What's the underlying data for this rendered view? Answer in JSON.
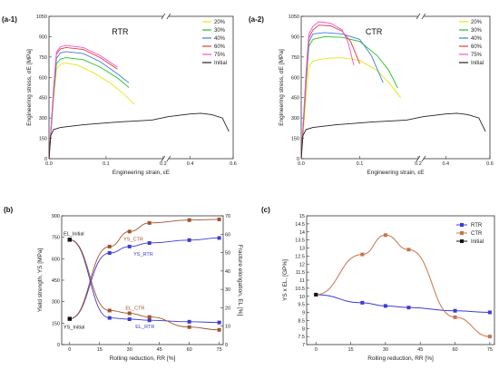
{
  "chart_data": [
    {
      "type": "line",
      "panel_label": "(a-1)",
      "title": "RTR",
      "xlabel": "Engineering strain, εE",
      "ylabel": "Engineering stress, σE [MPa]",
      "xlim": [
        0,
        0.6
      ],
      "ylim": [
        0,
        1050
      ],
      "xticks": [
        "0.0",
        "0.1",
        "0.2",
        "0.4",
        "0.6"
      ],
      "yticks": [
        "0",
        "150",
        "300",
        "450",
        "600",
        "750",
        "900",
        "1050"
      ],
      "legend_position": "top-right",
      "series": [
        {
          "name": "20%",
          "color": "#e6e60f",
          "x": [
            0,
            0.008,
            0.013,
            0.02,
            0.03,
            0.05,
            0.08,
            0.11,
            0.13,
            0.15
          ],
          "y": [
            0,
            440,
            660,
            695,
            705,
            690,
            630,
            550,
            480,
            400
          ]
        },
        {
          "name": "30%",
          "color": "#22c322",
          "x": [
            0,
            0.008,
            0.013,
            0.02,
            0.03,
            0.06,
            0.09,
            0.12,
            0.14
          ],
          "y": [
            0,
            460,
            700,
            735,
            745,
            730,
            675,
            595,
            525
          ]
        },
        {
          "name": "40%",
          "color": "#3f7de0",
          "x": [
            0,
            0.008,
            0.013,
            0.02,
            0.03,
            0.06,
            0.09,
            0.12,
            0.14
          ],
          "y": [
            0,
            480,
            740,
            780,
            790,
            775,
            715,
            625,
            560
          ]
        },
        {
          "name": "60%",
          "color": "#e83a3a",
          "x": [
            0,
            0.008,
            0.013,
            0.02,
            0.03,
            0.06,
            0.09,
            0.12
          ],
          "y": [
            0,
            500,
            770,
            810,
            820,
            805,
            745,
            660
          ]
        },
        {
          "name": "75%",
          "color": "#ef4fd6",
          "x": [
            0,
            0.008,
            0.013,
            0.02,
            0.03,
            0.06,
            0.09,
            0.12
          ],
          "y": [
            0,
            510,
            785,
            825,
            835,
            820,
            760,
            675
          ]
        },
        {
          "name": "Initial",
          "color": "#222222",
          "x": [
            0,
            0.003,
            0.008,
            0.02,
            0.06,
            0.12,
            0.18,
            0.3,
            0.4,
            0.45,
            0.5,
            0.55,
            0.58
          ],
          "y": [
            0,
            170,
            215,
            230,
            250,
            270,
            285,
            310,
            330,
            335,
            325,
            300,
            200
          ]
        }
      ]
    },
    {
      "type": "line",
      "panel_label": "(a-2)",
      "title": "CTR",
      "xlabel": "Engineering strain, εE",
      "ylabel": "Engineering stress, σE [MPa]",
      "xlim": [
        0,
        0.6
      ],
      "ylim": [
        0,
        1050
      ],
      "xticks": [
        "0.0",
        "0.1",
        "0.2",
        "0.4",
        "0.6"
      ],
      "yticks": [
        "0",
        "150",
        "300",
        "450",
        "600",
        "750",
        "900",
        "1050"
      ],
      "legend_position": "top-right",
      "series": [
        {
          "name": "20%",
          "color": "#e6e60f",
          "x": [
            0,
            0.008,
            0.013,
            0.02,
            0.04,
            0.07,
            0.1,
            0.13,
            0.15,
            0.17
          ],
          "y": [
            0,
            450,
            680,
            720,
            740,
            745,
            725,
            650,
            560,
            450
          ]
        },
        {
          "name": "30%",
          "color": "#22c322",
          "x": [
            0,
            0.008,
            0.013,
            0.02,
            0.04,
            0.07,
            0.1,
            0.13,
            0.15,
            0.165
          ],
          "y": [
            0,
            550,
            830,
            880,
            900,
            895,
            865,
            760,
            650,
            520
          ]
        },
        {
          "name": "40%",
          "color": "#3f7de0",
          "x": [
            0,
            0.008,
            0.013,
            0.02,
            0.04,
            0.07,
            0.1,
            0.12,
            0.14
          ],
          "y": [
            0,
            570,
            860,
            920,
            930,
            920,
            880,
            760,
            560
          ]
        },
        {
          "name": "60%",
          "color": "#e83a3a",
          "x": [
            0,
            0.008,
            0.013,
            0.02,
            0.03,
            0.05,
            0.07,
            0.085,
            0.1
          ],
          "y": [
            0,
            600,
            890,
            950,
            985,
            980,
            940,
            860,
            700
          ]
        },
        {
          "name": "75%",
          "color": "#ef4fd6",
          "x": [
            0,
            0.008,
            0.013,
            0.02,
            0.03,
            0.05,
            0.07,
            0.08,
            0.09
          ],
          "y": [
            0,
            620,
            920,
            975,
            1010,
            1000,
            950,
            860,
            690
          ]
        },
        {
          "name": "Initial",
          "color": "#222222",
          "x": [
            0,
            0.003,
            0.008,
            0.02,
            0.06,
            0.12,
            0.18,
            0.3,
            0.4,
            0.45,
            0.5,
            0.55,
            0.58
          ],
          "y": [
            0,
            170,
            215,
            230,
            250,
            270,
            285,
            310,
            330,
            335,
            325,
            300,
            200
          ]
        }
      ]
    },
    {
      "type": "line",
      "panel_label": "(b)",
      "xlabel": "Rolling reduction, RR [%]",
      "ylabel": "Yield strength, YS [MPa]",
      "ylabel_right": "Fracture elongation, EL [%]",
      "xlim": [
        -4,
        77
      ],
      "ylim": [
        0,
        900
      ],
      "ylim_right": [
        0,
        70
      ],
      "xticks": [
        "0",
        "15",
        "30",
        "45",
        "60",
        "75"
      ],
      "yticks": [
        "0",
        "150",
        "300",
        "450",
        "600",
        "750",
        "900"
      ],
      "yticks_right": [
        "0",
        "10",
        "20",
        "30",
        "40",
        "50",
        "60",
        "70"
      ],
      "annotations": [
        "EL_Initial",
        "YS_Initial",
        "YS_CTR",
        "YS_RTR",
        "EL_CTR",
        "EL_RTR"
      ],
      "series": [
        {
          "name": "YS_RTR",
          "color": "#3b3bd6",
          "axis": "left",
          "x": [
            0,
            20,
            30,
            40,
            60,
            75
          ],
          "y": [
            180,
            640,
            685,
            710,
            730,
            745
          ]
        },
        {
          "name": "YS_CTR",
          "color": "#a0522d",
          "axis": "left",
          "x": [
            0,
            20,
            30,
            40,
            60,
            75
          ],
          "y": [
            180,
            685,
            790,
            850,
            870,
            875
          ]
        },
        {
          "name": "EL_RTR",
          "color": "#3b3bd6",
          "axis": "right",
          "x": [
            0,
            20,
            30,
            40,
            60,
            75
          ],
          "y": [
            57,
            14.5,
            13.8,
            13.2,
            12.4,
            12
          ]
        },
        {
          "name": "EL_CTR",
          "color": "#a0522d",
          "axis": "right",
          "x": [
            0,
            20,
            30,
            40,
            60,
            75
          ],
          "y": [
            57,
            18.5,
            17,
            15,
            9.5,
            8
          ]
        }
      ]
    },
    {
      "type": "line",
      "panel_label": "(c)",
      "xlabel": "Rolling reduction, RR [%]",
      "ylabel": "YS x EL, [GP%]",
      "xlim": [
        -4,
        77
      ],
      "ylim": [
        7,
        15
      ],
      "xticks": [
        "0",
        "15",
        "30",
        "45",
        "60",
        "75"
      ],
      "yticks": [
        "7",
        "7.5",
        "8",
        "8.5",
        "9",
        "9.5",
        "10",
        "10.5",
        "11",
        "11.5",
        "12",
        "12.5",
        "13",
        "13.5",
        "14",
        "14.5",
        "15"
      ],
      "legend_position": "top-right",
      "series": [
        {
          "name": "RTR",
          "color": "#3b3bd6",
          "x": [
            0,
            20,
            30,
            40,
            60,
            75
          ],
          "y": [
            10.1,
            9.6,
            9.4,
            9.3,
            9.1,
            9.0
          ]
        },
        {
          "name": "CTR",
          "color": "#c8744a",
          "x": [
            0,
            20,
            30,
            40,
            60,
            75
          ],
          "y": [
            10.1,
            12.6,
            13.8,
            12.9,
            8.7,
            7.5
          ]
        },
        {
          "name": "Initial",
          "color": "#111111",
          "x": [
            0
          ],
          "y": [
            10.1
          ]
        }
      ]
    }
  ]
}
